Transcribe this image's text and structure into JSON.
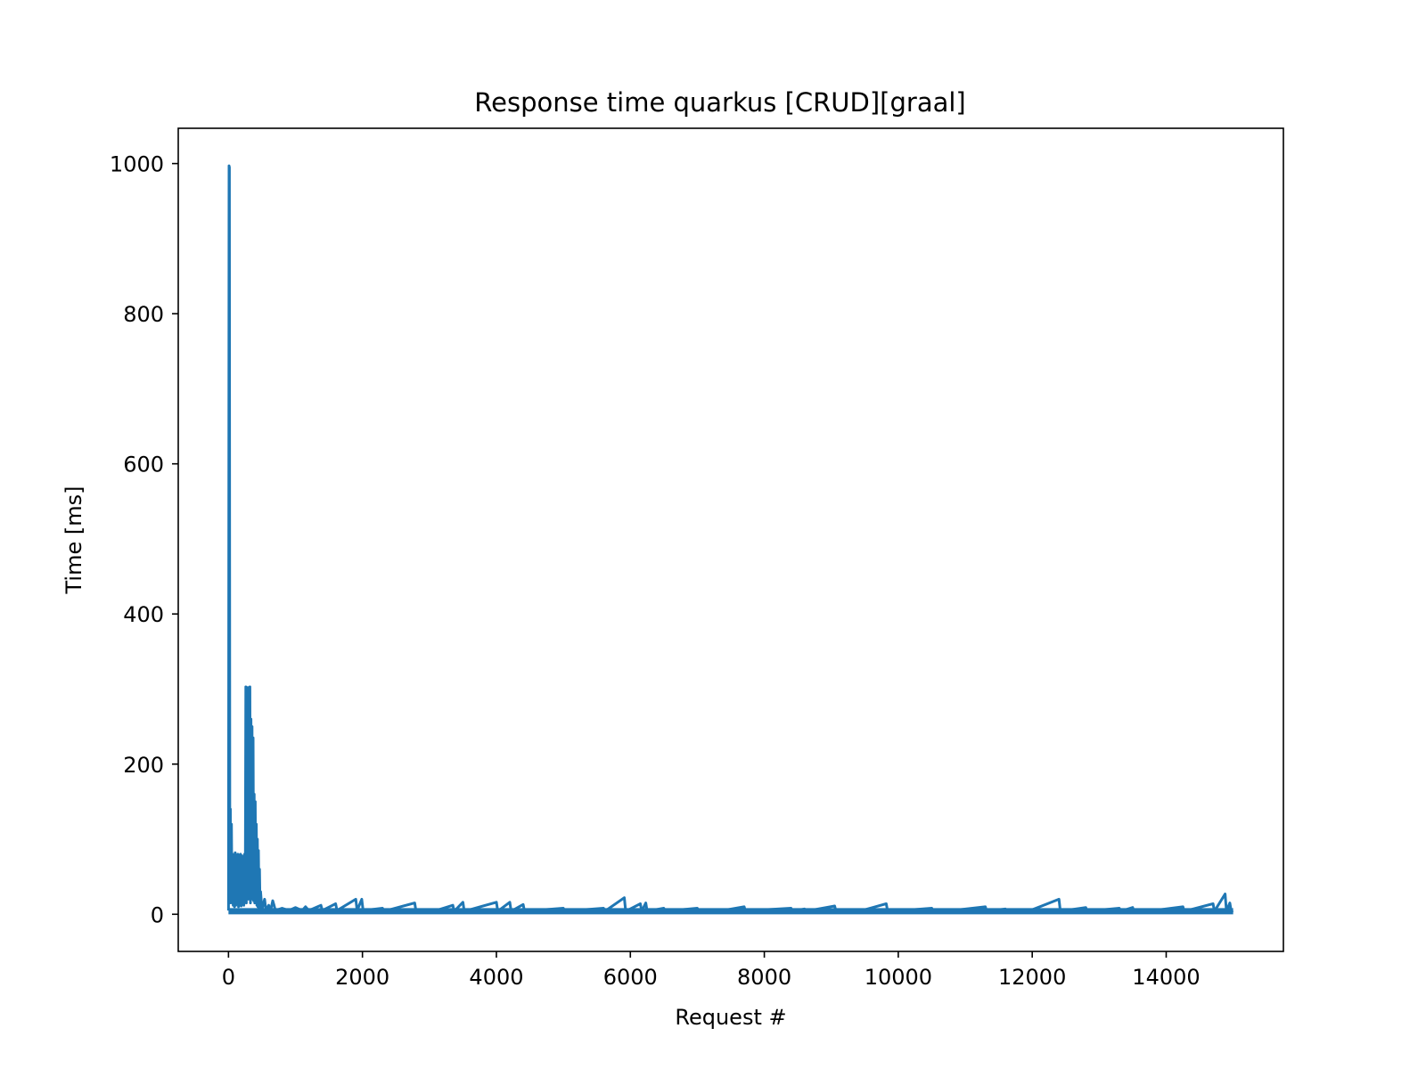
{
  "chart_data": {
    "type": "line",
    "title": "Response time quarkus [CRUD][graal]",
    "xlabel": "Request #",
    "ylabel": "Time [ms]",
    "xlim": [
      -750,
      15750
    ],
    "ylim": [
      -49.5,
      1047
    ],
    "xticks": [
      0,
      2000,
      4000,
      6000,
      8000,
      10000,
      12000,
      14000
    ],
    "yticks": [
      0,
      200,
      400,
      600,
      800,
      1000
    ],
    "grid": false,
    "legend": "none",
    "series": [
      {
        "color": "#1f77b4",
        "points": [
          [
            0,
            5
          ],
          [
            8,
            997
          ],
          [
            14,
            995
          ],
          [
            20,
            15
          ],
          [
            28,
            140
          ],
          [
            36,
            20
          ],
          [
            44,
            120
          ],
          [
            52,
            15
          ],
          [
            62,
            80
          ],
          [
            70,
            12
          ],
          [
            80,
            75
          ],
          [
            90,
            10
          ],
          [
            100,
            82
          ],
          [
            110,
            12
          ],
          [
            120,
            78
          ],
          [
            130,
            14
          ],
          [
            140,
            80
          ],
          [
            150,
            10
          ],
          [
            160,
            76
          ],
          [
            170,
            12
          ],
          [
            180,
            80
          ],
          [
            190,
            11
          ],
          [
            200,
            78
          ],
          [
            210,
            13
          ],
          [
            220,
            75
          ],
          [
            230,
            12
          ],
          [
            240,
            80
          ],
          [
            250,
            18
          ],
          [
            258,
            303
          ],
          [
            266,
            15
          ],
          [
            272,
            300
          ],
          [
            280,
            40
          ],
          [
            288,
            302
          ],
          [
            296,
            20
          ],
          [
            304,
            280
          ],
          [
            312,
            30
          ],
          [
            320,
            303
          ],
          [
            328,
            15
          ],
          [
            336,
            260
          ],
          [
            344,
            25
          ],
          [
            352,
            250
          ],
          [
            360,
            20
          ],
          [
            368,
            235
          ],
          [
            376,
            18
          ],
          [
            384,
            160
          ],
          [
            392,
            15
          ],
          [
            400,
            150
          ],
          [
            408,
            18
          ],
          [
            416,
            120
          ],
          [
            424,
            12
          ],
          [
            432,
            100
          ],
          [
            440,
            10
          ],
          [
            448,
            85
          ],
          [
            456,
            8
          ],
          [
            464,
            60
          ],
          [
            472,
            8
          ],
          [
            480,
            30
          ],
          [
            500,
            6
          ],
          [
            540,
            20
          ],
          [
            560,
            5
          ],
          [
            600,
            12
          ],
          [
            630,
            5
          ],
          [
            660,
            18
          ],
          [
            680,
            12
          ],
          [
            700,
            5
          ],
          [
            800,
            8
          ],
          [
            900,
            5
          ],
          [
            1000,
            9
          ],
          [
            1100,
            5
          ],
          [
            1150,
            10
          ],
          [
            1200,
            5
          ],
          [
            1380,
            12
          ],
          [
            1400,
            5
          ],
          [
            1600,
            14
          ],
          [
            1620,
            5
          ],
          [
            1900,
            20
          ],
          [
            1920,
            5
          ],
          [
            1990,
            20
          ],
          [
            2010,
            5
          ],
          [
            2300,
            8
          ],
          [
            2320,
            4
          ],
          [
            2780,
            15
          ],
          [
            2800,
            4
          ],
          [
            3100,
            5
          ],
          [
            3350,
            12
          ],
          [
            3370,
            4
          ],
          [
            3500,
            16
          ],
          [
            3520,
            4
          ],
          [
            4000,
            16
          ],
          [
            4020,
            4
          ],
          [
            4200,
            16
          ],
          [
            4220,
            4
          ],
          [
            4400,
            13
          ],
          [
            4420,
            4
          ],
          [
            5000,
            8
          ],
          [
            5020,
            4
          ],
          [
            5600,
            8
          ],
          [
            5620,
            4
          ],
          [
            5910,
            22
          ],
          [
            5930,
            4
          ],
          [
            6150,
            14
          ],
          [
            6170,
            4
          ],
          [
            6230,
            15
          ],
          [
            6250,
            4
          ],
          [
            6500,
            8
          ],
          [
            6520,
            4
          ],
          [
            7000,
            8
          ],
          [
            7020,
            4
          ],
          [
            7300,
            6
          ],
          [
            7320,
            4
          ],
          [
            7700,
            10
          ],
          [
            7720,
            4
          ],
          [
            8000,
            6
          ],
          [
            8400,
            8
          ],
          [
            8420,
            4
          ],
          [
            8600,
            7
          ],
          [
            8620,
            4
          ],
          [
            9050,
            11
          ],
          [
            9070,
            4
          ],
          [
            9500,
            6
          ],
          [
            9820,
            14
          ],
          [
            9840,
            4
          ],
          [
            10200,
            6
          ],
          [
            10500,
            8
          ],
          [
            10520,
            4
          ],
          [
            10800,
            5
          ],
          [
            11300,
            10
          ],
          [
            11320,
            4
          ],
          [
            11600,
            7
          ],
          [
            11620,
            4
          ],
          [
            12000,
            6
          ],
          [
            12400,
            20
          ],
          [
            12420,
            4
          ],
          [
            12800,
            9
          ],
          [
            12820,
            4
          ],
          [
            13300,
            8
          ],
          [
            13320,
            4
          ],
          [
            13500,
            9
          ],
          [
            13520,
            4
          ],
          [
            13900,
            6
          ],
          [
            14250,
            10
          ],
          [
            14270,
            4
          ],
          [
            14700,
            14
          ],
          [
            14720,
            4
          ],
          [
            14880,
            27
          ],
          [
            14900,
            4
          ],
          [
            14950,
            15
          ],
          [
            14970,
            4
          ],
          [
            15000,
            5
          ]
        ]
      }
    ]
  }
}
